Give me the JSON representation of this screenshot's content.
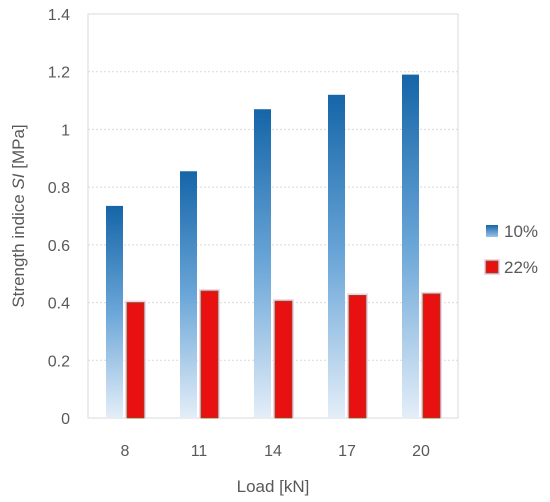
{
  "chart_data": {
    "type": "bar",
    "categories": [
      "8",
      "11",
      "14",
      "17",
      "20"
    ],
    "series": [
      {
        "name": "10%",
        "values": [
          0.735,
          0.855,
          1.07,
          1.12,
          1.19
        ],
        "color": "#1f6fb4"
      },
      {
        "name": "22%",
        "values": [
          0.4,
          0.44,
          0.405,
          0.425,
          0.43
        ],
        "color": "#e81010"
      }
    ],
    "xlabel": "Load [kN]",
    "ylabel_prefix": "Strength indice ",
    "ylabel_italic": "SI",
    "ylabel_suffix": " [MPa]",
    "ylim": [
      0,
      1.4
    ],
    "yticks": [
      "0",
      "0.2",
      "0.4",
      "0.6",
      "0.8",
      "1",
      "1.2",
      "1.4"
    ],
    "grid": true,
    "legend_position": "right"
  }
}
